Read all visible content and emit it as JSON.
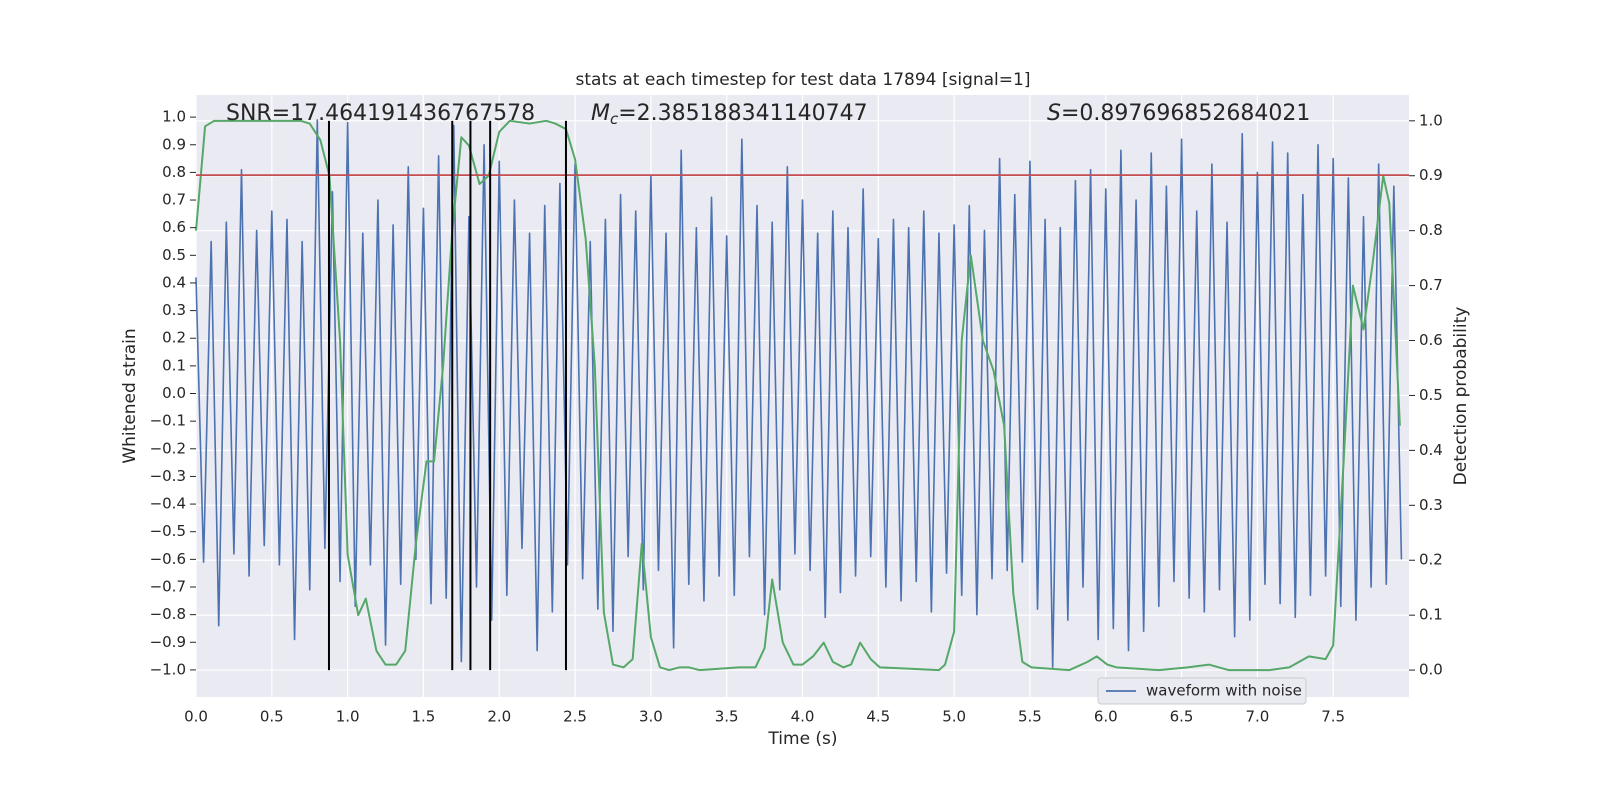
{
  "chart_data": {
    "type": "line",
    "title": "stats at each timestep for test data 17894 [signal=1]",
    "xlabel": "Time (s)",
    "ylabel": "Whitened strain",
    "y2label": "Detection probability",
    "annotations": [
      {
        "text": "SNR=17.464191436767578"
      },
      {
        "symbol": "M",
        "subscript": "c",
        "text": "=2.385188341140747"
      },
      {
        "symbol": "S",
        "text": "=0.897696852684021"
      }
    ],
    "xlim": [
      0,
      8.0
    ],
    "ylim": [
      -1.098,
      1.08
    ],
    "y2lim": [
      -0.049,
      1.047
    ],
    "xticks": [
      {
        "value": 0,
        "label": "0.0"
      },
      {
        "value": 0.5,
        "label": "0.5"
      },
      {
        "value": 1,
        "label": "1.0"
      },
      {
        "value": 1.5,
        "label": "1.5"
      },
      {
        "value": 2,
        "label": "2.0"
      },
      {
        "value": 2.5,
        "label": "2.5"
      },
      {
        "value": 3,
        "label": "3.0"
      },
      {
        "value": 3.5,
        "label": "3.5"
      },
      {
        "value": 4,
        "label": "4.0"
      },
      {
        "value": 4.5,
        "label": "4.5"
      },
      {
        "value": 5,
        "label": "5.0"
      },
      {
        "value": 5.5,
        "label": "5.5"
      },
      {
        "value": 6,
        "label": "6.0"
      },
      {
        "value": 6.5,
        "label": "6.5"
      },
      {
        "value": 7,
        "label": "7.0"
      },
      {
        "value": 7.5,
        "label": "7.5"
      }
    ],
    "yticks": [
      {
        "value": 1,
        "label": "1.0"
      },
      {
        "value": 0.9,
        "label": "0.9"
      },
      {
        "value": 0.8,
        "label": "0.8"
      },
      {
        "value": 0.7,
        "label": "0.7"
      },
      {
        "value": 0.6,
        "label": "0.6"
      },
      {
        "value": 0.5,
        "label": "0.5"
      },
      {
        "value": 0.4,
        "label": "0.4"
      },
      {
        "value": 0.3,
        "label": "0.3"
      },
      {
        "value": 0.2,
        "label": "0.2"
      },
      {
        "value": 0.1,
        "label": "0.1"
      },
      {
        "value": 0,
        "label": "0.0"
      },
      {
        "value": -0.1,
        "label": "−0.1"
      },
      {
        "value": -0.2,
        "label": "−0.2"
      },
      {
        "value": -0.3,
        "label": "−0.3"
      },
      {
        "value": -0.4,
        "label": "−0.4"
      },
      {
        "value": -0.5,
        "label": "−0.5"
      },
      {
        "value": -0.6,
        "label": "−0.6"
      },
      {
        "value": -0.7,
        "label": "−0.7"
      },
      {
        "value": -0.8,
        "label": "−0.8"
      },
      {
        "value": -0.9,
        "label": "−0.9"
      },
      {
        "value": -1,
        "label": "−1.0"
      }
    ],
    "y2ticks": [
      {
        "value": 0,
        "label": "0.0"
      },
      {
        "value": 0.1,
        "label": "0.1"
      },
      {
        "value": 0.2,
        "label": "0.2"
      },
      {
        "value": 0.3,
        "label": "0.3"
      },
      {
        "value": 0.4,
        "label": "0.4"
      },
      {
        "value": 0.5,
        "label": "0.5"
      },
      {
        "value": 0.6,
        "label": "0.6"
      },
      {
        "value": 0.7,
        "label": "0.7"
      },
      {
        "value": 0.8,
        "label": "0.8"
      },
      {
        "value": 0.9,
        "label": "0.9"
      },
      {
        "value": 1,
        "label": "1.0"
      }
    ],
    "grid": true,
    "legend": "lower right",
    "threshold": 0.79,
    "threshold_color": "#c44e52",
    "vlines": [
      0.877,
      1.69,
      1.81,
      1.94,
      2.44
    ],
    "vline_color": "#000000",
    "series": [
      {
        "name": "waveform with noise",
        "color": "#4c72b0",
        "x": [
          0,
          0.05,
          0.1,
          0.15,
          0.2,
          0.25,
          0.3,
          0.35,
          0.4,
          0.45,
          0.5,
          0.55,
          0.6,
          0.65,
          0.7,
          0.75,
          0.8,
          0.85,
          0.9,
          0.95,
          1,
          1.05,
          1.1,
          1.15,
          1.2,
          1.25,
          1.3,
          1.35,
          1.4,
          1.45,
          1.5,
          1.55,
          1.6,
          1.65,
          1.7,
          1.75,
          1.8,
          1.85,
          1.9,
          1.95,
          2,
          2.05,
          2.1,
          2.15,
          2.2,
          2.25,
          2.3,
          2.35,
          2.4,
          2.45,
          2.5,
          2.55,
          2.6,
          2.65,
          2.7,
          2.75,
          2.8,
          2.85,
          2.9,
          2.95,
          3,
          3.05,
          3.1,
          3.15,
          3.2,
          3.25,
          3.3,
          3.35,
          3.4,
          3.45,
          3.5,
          3.55,
          3.6,
          3.65,
          3.7,
          3.75,
          3.8,
          3.85,
          3.9,
          3.95,
          4,
          4.05,
          4.1,
          4.15,
          4.2,
          4.25,
          4.3,
          4.35,
          4.4,
          4.45,
          4.5,
          4.55,
          4.6,
          4.65,
          4.7,
          4.75,
          4.8,
          4.85,
          4.9,
          4.95,
          5,
          5.05,
          5.1,
          5.15,
          5.2,
          5.25,
          5.3,
          5.35,
          5.4,
          5.45,
          5.5,
          5.55,
          5.6,
          5.65,
          5.7,
          5.75,
          5.8,
          5.85,
          5.9,
          5.95,
          6,
          6.05,
          6.1,
          6.15,
          6.2,
          6.25,
          6.3,
          6.35,
          6.4,
          6.45,
          6.5,
          6.55,
          6.6,
          6.65,
          6.7,
          6.75,
          6.8,
          6.85,
          6.9,
          6.95,
          7,
          7.05,
          7.1,
          7.15,
          7.2,
          7.25,
          7.3,
          7.35,
          7.4,
          7.45,
          7.5,
          7.55,
          7.6,
          7.65,
          7.7,
          7.75,
          7.8,
          7.85,
          7.9,
          7.95
        ],
        "values": [
          0.42,
          -0.61,
          0.55,
          -0.84,
          0.62,
          -0.58,
          0.81,
          -0.66,
          0.59,
          -0.55,
          0.66,
          -0.62,
          0.63,
          -0.89,
          0.55,
          -0.71,
          0.99,
          -0.56,
          0.73,
          -0.68,
          0.98,
          -0.77,
          0.58,
          -0.62,
          0.7,
          -0.91,
          0.61,
          -0.69,
          0.82,
          -0.6,
          0.67,
          -0.76,
          0.86,
          -0.74,
          0.97,
          -0.97,
          0.64,
          -0.7,
          0.9,
          -0.82,
          0.84,
          -0.73,
          0.7,
          -0.56,
          0.58,
          -0.93,
          0.68,
          -0.79,
          0.76,
          -0.62,
          0.83,
          -0.67,
          0.55,
          -0.78,
          0.63,
          -0.86,
          0.72,
          -0.59,
          0.66,
          -0.71,
          0.79,
          -0.64,
          0.58,
          -0.92,
          0.88,
          -0.69,
          0.6,
          -0.75,
          0.71,
          -0.66,
          0.57,
          -0.73,
          0.92,
          -0.59,
          0.68,
          -0.8,
          0.62,
          -0.71,
          0.82,
          -0.58,
          0.7,
          -0.64,
          0.58,
          -0.81,
          0.66,
          -0.72,
          0.6,
          -0.66,
          0.74,
          -0.59,
          0.56,
          -0.7,
          0.63,
          -0.75,
          0.6,
          -0.68,
          0.66,
          -0.79,
          0.58,
          -0.65,
          0.61,
          -0.73,
          0.68,
          -0.8,
          0.59,
          -0.67,
          0.85,
          -0.64,
          0.72,
          -0.61,
          0.84,
          -0.78,
          0.63,
          -0.99,
          0.6,
          -0.82,
          0.77,
          -0.7,
          0.81,
          -0.89,
          0.74,
          -0.85,
          0.88,
          -0.93,
          0.7,
          -0.86,
          0.87,
          -0.77,
          0.75,
          -0.68,
          0.92,
          -0.74,
          0.66,
          -0.79,
          0.83,
          -0.71,
          0.62,
          -0.88,
          0.94,
          -0.82,
          0.8,
          -0.69,
          0.91,
          -0.76,
          0.87,
          -0.81,
          0.72,
          -0.73,
          0.9,
          -0.66,
          0.85,
          -0.77,
          0.78,
          -0.82,
          0.64,
          -0.7,
          0.83,
          -0.69,
          0.75,
          -0.6
        ]
      },
      {
        "color": "#55a868",
        "axis": "y2",
        "x": [
          0,
          0.06,
          0.12,
          0.69,
          0.75,
          0.82,
          0.88,
          0.95,
          1.0,
          1.07,
          1.12,
          1.19,
          1.25,
          1.32,
          1.38,
          1.45,
          1.52,
          1.57,
          1.63,
          1.69,
          1.75,
          1.8,
          1.87,
          1.93,
          2.0,
          2.07,
          2.2,
          2.31,
          2.37,
          2.44,
          2.5,
          2.57,
          2.63,
          2.69,
          2.75,
          2.82,
          2.88,
          2.94,
          3.0,
          3.06,
          3.12,
          3.19,
          3.25,
          3.32,
          3.58,
          3.69,
          3.75,
          3.8,
          3.87,
          3.94,
          4.0,
          4.07,
          4.14,
          4.2,
          4.27,
          4.32,
          4.38,
          4.45,
          4.51,
          4.9,
          4.94,
          5.0,
          5.05,
          5.11,
          5.19,
          5.26,
          5.33,
          5.39,
          5.45,
          5.51,
          5.76,
          5.88,
          5.94,
          6.01,
          6.07,
          6.35,
          6.54,
          6.68,
          6.81,
          7.08,
          7.21,
          7.34,
          7.45,
          7.5,
          7.57,
          7.63,
          7.7,
          7.76,
          7.83,
          7.87,
          7.94
        ],
        "values": [
          0.8,
          0.99,
          1.0,
          1.0,
          0.995,
          0.965,
          0.9,
          0.6,
          0.21,
          0.1,
          0.13,
          0.035,
          0.01,
          0.01,
          0.035,
          0.23,
          0.38,
          0.38,
          0.555,
          0.8,
          0.97,
          0.955,
          0.885,
          0.9,
          0.98,
          1.0,
          0.995,
          1.0,
          0.995,
          0.985,
          0.93,
          0.785,
          0.555,
          0.105,
          0.01,
          0.005,
          0.02,
          0.23,
          0.06,
          0.005,
          0.0,
          0.005,
          0.005,
          0.0,
          0.005,
          0.005,
          0.04,
          0.165,
          0.05,
          0.01,
          0.01,
          0.025,
          0.05,
          0.015,
          0.005,
          0.01,
          0.05,
          0.02,
          0.005,
          0.0,
          0.01,
          0.07,
          0.6,
          0.755,
          0.6,
          0.545,
          0.445,
          0.14,
          0.015,
          0.005,
          0.0,
          0.015,
          0.025,
          0.01,
          0.005,
          0.0,
          0.005,
          0.01,
          0.0,
          0.0,
          0.005,
          0.025,
          0.02,
          0.045,
          0.385,
          0.7,
          0.62,
          0.74,
          0.9,
          0.85,
          0.445
        ]
      }
    ]
  }
}
